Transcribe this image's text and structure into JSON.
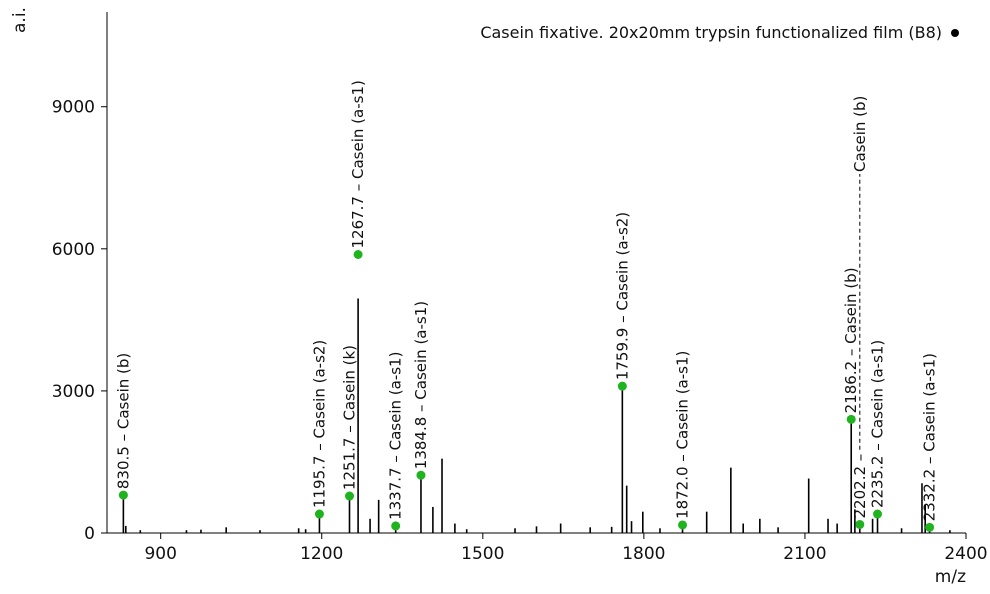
{
  "chart_data": {
    "type": "spectrum",
    "legend": "Casein fixative. 20x20mm trypsin functionalized film (B8)",
    "legend_position": "upper right",
    "y_label": "a.i.",
    "x_label": "m/z",
    "xlim": [
      800,
      2400
    ],
    "ylim": [
      0,
      11000
    ],
    "xticks": [
      900,
      1200,
      1500,
      1800,
      2100,
      2400
    ],
    "yticks": [
      0,
      3000,
      6000,
      9000
    ],
    "color": "#000000",
    "marker_color": "#1fb41f",
    "peaks": {
      "x": [
        830.5,
        835,
        862,
        948,
        975,
        1022,
        1085,
        1157,
        1170,
        1195.7,
        1251.7,
        1267.7,
        1290,
        1306,
        1337.7,
        1384.8,
        1407,
        1424,
        1448,
        1470,
        1560,
        1600,
        1645,
        1700,
        1740,
        1759.9,
        1768,
        1777,
        1798,
        1830,
        1872.0,
        1917,
        1962,
        1985,
        2016,
        2050,
        2107,
        2143,
        2160,
        2186.2,
        2193,
        2202.2,
        2226,
        2235.2,
        2280,
        2318,
        2324,
        2332.2,
        2370
      ],
      "values": [
        800,
        150,
        60,
        60,
        70,
        120,
        60,
        100,
        80,
        380,
        760,
        4950,
        300,
        700,
        150,
        1200,
        550,
        1570,
        200,
        80,
        100,
        140,
        200,
        120,
        130,
        3100,
        1000,
        250,
        450,
        100,
        150,
        450,
        1380,
        200,
        300,
        120,
        1150,
        300,
        200,
        2400,
        500,
        200,
        300,
        400,
        100,
        1050,
        600,
        100,
        60
      ]
    },
    "annotations": [
      {
        "x": 830.5,
        "y": 800,
        "label": "830.5 – Casein (b)"
      },
      {
        "x": 1195.7,
        "y": 400,
        "label": "1195.7 – Casein (a-s2)"
      },
      {
        "x": 1251.7,
        "y": 780,
        "label": "1251.7 – Casein (k)"
      },
      {
        "x": 1267.7,
        "y": 5880,
        "label": "1267.7 – Casein (a-s1)"
      },
      {
        "x": 1337.7,
        "y": 150,
        "label": "1337.7 – Casein (a-s1)"
      },
      {
        "x": 1384.8,
        "y": 1220,
        "label": "1384.8 – Casein (a-s1)"
      },
      {
        "x": 1759.9,
        "y": 3100,
        "label": "1759.9 – Casein (a-s2)"
      },
      {
        "x": 1872.0,
        "y": 170,
        "label": "1872.0 – Casein (a-s1)"
      },
      {
        "x": 2186.2,
        "y": 2400,
        "label": "2186.2 – Casein (b)"
      },
      {
        "x": 2202.2,
        "y": 180,
        "label": "2202.2 –",
        "label_end": "Casein (b)"
      },
      {
        "x": 2235.2,
        "y": 400,
        "label": "2235.2 – Casein (a-s1)"
      },
      {
        "x": 2332.2,
        "y": 120,
        "label": "2332.2 – Casein (a-s1)"
      }
    ]
  }
}
